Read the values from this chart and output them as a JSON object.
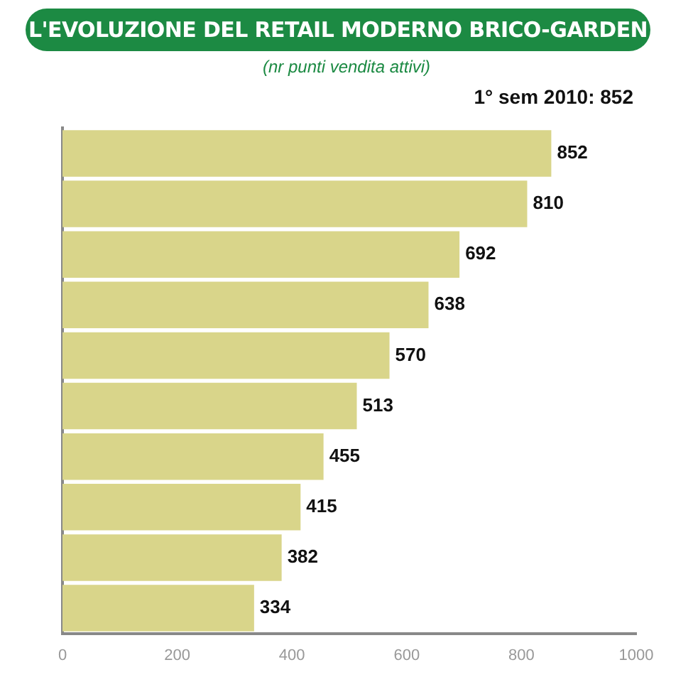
{
  "chart_data": {
    "type": "bar",
    "orientation": "horizontal",
    "title": "L'EVOLUZIONE DEL RETAIL MODERNO BRICO-GARDEN",
    "subtitle": "(nr punti vendita attivi)",
    "annotations": [
      "1° sem 2010: 852"
    ],
    "categories": [
      null,
      null,
      null,
      null,
      null,
      null,
      null,
      null,
      null,
      null
    ],
    "values": [
      852,
      810,
      692,
      638,
      570,
      513,
      455,
      415,
      382,
      334
    ],
    "color": "#d9d58a",
    "xlim": [
      0,
      1000
    ],
    "xticks": [
      0,
      200,
      400,
      600,
      800,
      1000
    ],
    "data_labels": true,
    "grid": false,
    "legend": false
  }
}
